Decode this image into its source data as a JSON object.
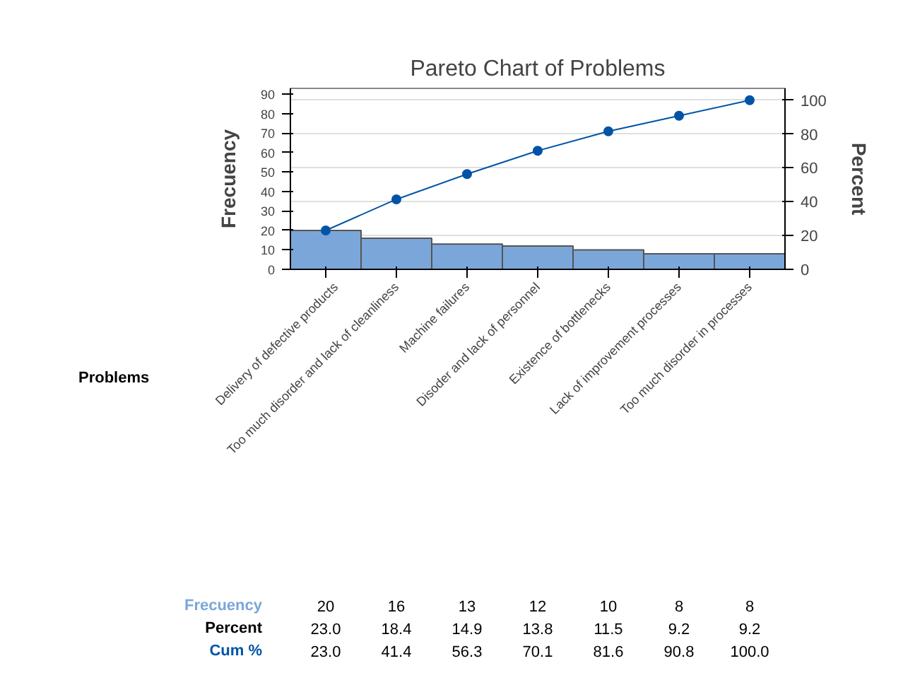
{
  "chart_data": {
    "type": "bar",
    "title": "Pareto Chart of Problems",
    "xlabel": "Problems",
    "ylabel": "Frecuency",
    "y2label": "Percent",
    "categories": [
      "Delivery of defective products",
      "Too much disorder and lack of cleanliness",
      "Machine failures",
      "Disoder and lack of personnel",
      "Existence of bottlenecks",
      "Lack of improvement processes",
      "Too much disorder in processes"
    ],
    "series": [
      {
        "name": "Frecuency",
        "color": "#7ba6d9",
        "values": [
          20,
          16,
          13,
          12,
          10,
          8,
          8
        ],
        "value_labels": [
          "20",
          "16",
          "13",
          "12",
          "10",
          "8",
          "8"
        ]
      },
      {
        "name": "Cum %",
        "type": "line",
        "axis": "y2",
        "color": "#0054a6",
        "marker": "circle",
        "values": [
          23.0,
          41.4,
          56.3,
          70.1,
          81.6,
          90.8,
          100.0
        ],
        "value_labels": [
          "23.0",
          "41.4",
          "56.3",
          "70.1",
          "81.6",
          "90.8",
          "100.0"
        ]
      }
    ],
    "annotations": [
      "Percent",
      "23.0",
      "18.4",
      "14.9",
      "13.8",
      "11.5",
      "9.2",
      "9.2"
    ],
    "ylim": [
      0,
      93
    ],
    "yticks": [
      0,
      10,
      20,
      30,
      40,
      50,
      60,
      70,
      80,
      90
    ],
    "y2lim": [
      0,
      107
    ],
    "y2ticks": [
      0,
      20,
      40,
      60,
      80,
      100
    ],
    "grid": "y2"
  }
}
